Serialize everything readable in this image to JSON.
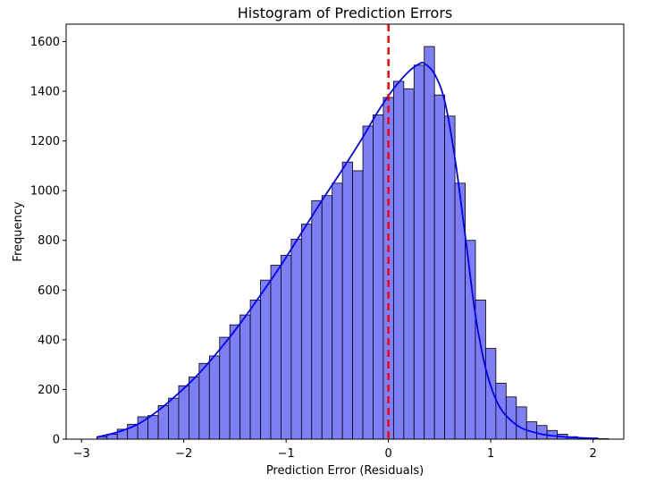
{
  "chart_data": {
    "type": "bar",
    "title": "Histogram of Prediction Errors",
    "xlabel": "Prediction Error (Residuals)",
    "ylabel": "Frequency",
    "xlim": [
      -3.15,
      2.3
    ],
    "ylim": [
      0,
      1670
    ],
    "xticks": [
      -3,
      -2,
      -1,
      0,
      1,
      2
    ],
    "xtick_labels": [
      "−3",
      "−2",
      "−1",
      "0",
      "1",
      "2"
    ],
    "yticks": [
      0,
      200,
      400,
      600,
      800,
      1000,
      1200,
      1400,
      1600
    ],
    "ytick_labels": [
      "0",
      "200",
      "400",
      "600",
      "800",
      "1000",
      "1200",
      "1400",
      "1600"
    ],
    "bin_start": -2.85,
    "bin_width": 0.1,
    "values": [
      10,
      20,
      40,
      60,
      90,
      95,
      135,
      165,
      215,
      250,
      305,
      335,
      410,
      460,
      500,
      560,
      640,
      700,
      740,
      805,
      865,
      960,
      980,
      1030,
      1115,
      1080,
      1260,
      1305,
      1375,
      1440,
      1410,
      1505,
      1580,
      1385,
      1300,
      1030,
      800,
      560,
      365,
      225,
      170,
      130,
      70,
      55,
      35,
      20,
      10,
      5,
      3,
      2
    ],
    "bar_color": "#7f7ff5",
    "bar_edge_color": "#000000",
    "kde_color": "#0000ff",
    "kde": {
      "x": [
        -2.85,
        -2.65,
        -2.45,
        -2.25,
        -2.05,
        -1.85,
        -1.65,
        -1.45,
        -1.25,
        -1.05,
        -0.85,
        -0.65,
        -0.45,
        -0.25,
        -0.1,
        0.05,
        0.2,
        0.3,
        0.35,
        0.45,
        0.55,
        0.65,
        0.75,
        0.85,
        0.95,
        1.05,
        1.15,
        1.3,
        1.5,
        1.7,
        1.9,
        2.05
      ],
      "y": [
        8,
        28,
        60,
        115,
        185,
        265,
        360,
        465,
        580,
        700,
        830,
        960,
        1085,
        1215,
        1320,
        1410,
        1480,
        1510,
        1512,
        1470,
        1360,
        1130,
        820,
        500,
        285,
        160,
        95,
        45,
        20,
        10,
        5,
        3
      ]
    },
    "reference_line": {
      "x": 0,
      "color": "#ff0000",
      "style": "dashed"
    },
    "grid": false
  }
}
